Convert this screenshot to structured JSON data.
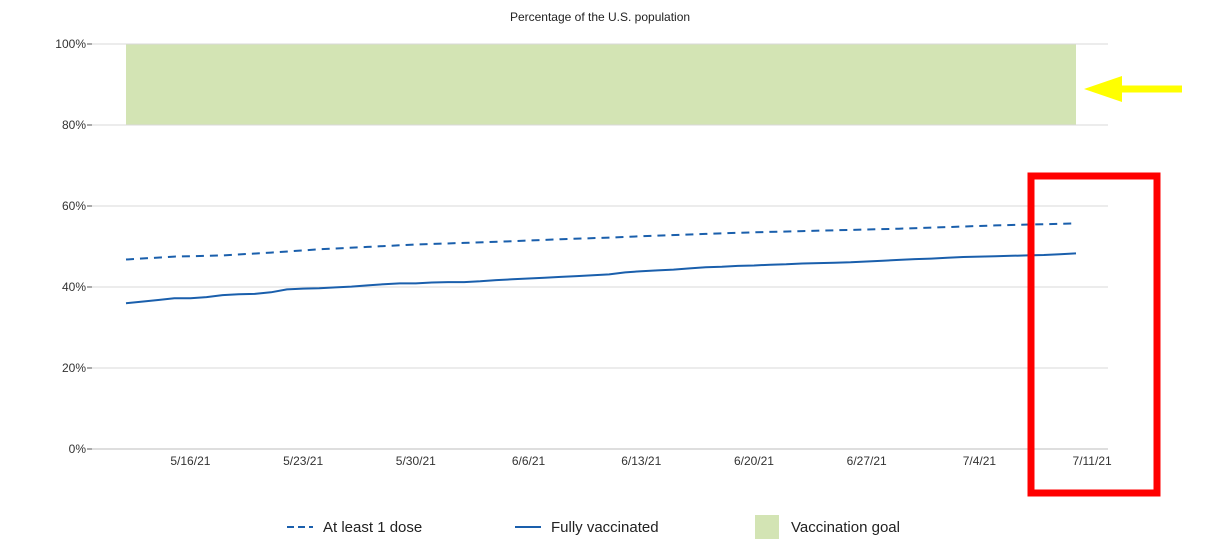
{
  "chart_data": {
    "type": "line",
    "title": "Percentage of the U.S. population",
    "ylim": [
      0,
      100
    ],
    "xlim": [
      0,
      59
    ],
    "y_ticks": [
      0,
      20,
      40,
      60,
      80,
      100
    ],
    "y_tick_labels": [
      "0%",
      "20%",
      "40%",
      "60%",
      "80%",
      "100%"
    ],
    "x_ticks": [
      {
        "day": 4,
        "label": "5/16/21"
      },
      {
        "day": 11,
        "label": "5/23/21"
      },
      {
        "day": 18,
        "label": "5/30/21"
      },
      {
        "day": 25,
        "label": "6/6/21"
      },
      {
        "day": 32,
        "label": "6/13/21"
      },
      {
        "day": 39,
        "label": "6/20/21"
      },
      {
        "day": 46,
        "label": "6/27/21"
      },
      {
        "day": 53,
        "label": "7/4/21"
      },
      {
        "day": 60,
        "label": "7/11/21"
      }
    ],
    "x_days_note": "day 0 = 5/12/21",
    "grid": true,
    "goal_band": {
      "label": "Vaccination goal",
      "x_start": 0,
      "x_end": 59,
      "y_from": 80,
      "y_to": 100,
      "color": "#d3e4b4"
    },
    "series": [
      {
        "name": "At least 1 dose",
        "style": "dashed",
        "color": "#1a5fac",
        "x": [
          0,
          3,
          6,
          9,
          12,
          15,
          18,
          21,
          24,
          27,
          30,
          33,
          36,
          39,
          42,
          45,
          48,
          51,
          54,
          57,
          59
        ],
        "values": [
          46.8,
          47.5,
          47.8,
          48.5,
          49.3,
          49.9,
          50.5,
          50.9,
          51.3,
          51.8,
          52.2,
          52.7,
          53.1,
          53.5,
          53.8,
          54.1,
          54.4,
          54.8,
          55.2,
          55.5,
          55.7
        ]
      },
      {
        "name": "Fully vaccinated",
        "style": "solid",
        "color": "#1a5fac",
        "x": [
          0,
          1,
          2,
          3,
          4,
          5,
          6,
          7,
          8,
          9,
          10,
          11,
          12,
          13,
          14,
          15,
          16,
          17,
          18,
          19,
          20,
          21,
          22,
          23,
          24,
          25,
          26,
          27,
          28,
          29,
          30,
          31,
          32,
          33,
          34,
          35,
          36,
          37,
          38,
          39,
          40,
          41,
          42,
          43,
          44,
          45,
          46,
          47,
          48,
          49,
          50,
          51,
          52,
          53,
          54,
          55,
          56,
          57,
          58,
          59
        ],
        "values": [
          36.0,
          36.4,
          36.8,
          37.2,
          37.2,
          37.5,
          38.0,
          38.2,
          38.3,
          38.7,
          39.4,
          39.6,
          39.7,
          39.9,
          40.1,
          40.4,
          40.7,
          40.9,
          40.9,
          41.1,
          41.2,
          41.2,
          41.4,
          41.7,
          41.9,
          42.1,
          42.3,
          42.5,
          42.7,
          42.9,
          43.1,
          43.6,
          43.9,
          44.1,
          44.3,
          44.6,
          44.9,
          45.0,
          45.2,
          45.3,
          45.5,
          45.6,
          45.8,
          45.9,
          46.0,
          46.1,
          46.3,
          46.5,
          46.7,
          46.9,
          47.0,
          47.2,
          47.4,
          47.5,
          47.6,
          47.7,
          47.8,
          47.9,
          48.1,
          48.3
        ]
      }
    ],
    "legend": [
      {
        "label": "At least 1 dose",
        "kind": "dashed-line"
      },
      {
        "label": "Fully vaccinated",
        "kind": "solid-line"
      },
      {
        "label": "Vaccination goal",
        "kind": "swatch"
      }
    ],
    "annotations": [
      {
        "kind": "arrow",
        "color": "#ffff00",
        "points_to": "goal_band"
      },
      {
        "kind": "highlight-box",
        "color": "#ff0000",
        "around": "7/11/21"
      }
    ]
  }
}
